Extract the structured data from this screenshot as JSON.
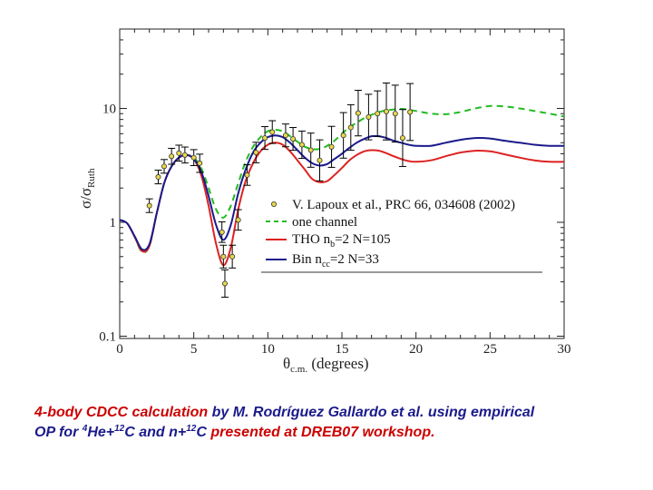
{
  "chart_data": {
    "type": "line",
    "xlabel": {
      "main": "θ",
      "sub": "c.m.",
      "rest": " (degrees)"
    },
    "ylabel": {
      "main": "σ/σ",
      "sub": "Ruth"
    },
    "xlim": [
      0,
      30
    ],
    "ylim": [
      0.1,
      60
    ],
    "yscale": "log",
    "xticks": [
      0,
      5,
      10,
      15,
      20,
      25,
      30
    ],
    "yticks": [
      {
        "value": 0.1,
        "label": "0.1"
      },
      {
        "value": 1,
        "label": "1"
      },
      {
        "value": 10,
        "label": "10"
      }
    ],
    "legend_position": "lower-right",
    "legend": [
      {
        "label": "V. Lapoux et al., PRC 66, 034608 (2002)",
        "style": "points"
      },
      {
        "label": "one channel",
        "style": "dashed"
      },
      {
        "label": "THO n",
        "sub": "b",
        "rest": "=2 N=105",
        "style": "solid-red"
      },
      {
        "label": "Bin n",
        "sub": "cc",
        "rest": "=2 N=33",
        "style": "solid-blue"
      }
    ],
    "series": [
      {
        "name": "one channel",
        "color": "#22bb22",
        "dash": true,
        "x": [
          0,
          0.5,
          1,
          1.5,
          2,
          2.5,
          3,
          3.5,
          4,
          4.5,
          5,
          5.5,
          6,
          6.5,
          7,
          7.5,
          8,
          8.5,
          9,
          9.5,
          10,
          10.5,
          11,
          11.5,
          12,
          12.5,
          13,
          13.5,
          14,
          14.5,
          15,
          15.5,
          16,
          16.5,
          17,
          17.5,
          18,
          19,
          20,
          21,
          22,
          23,
          24,
          25,
          26,
          27,
          28,
          29,
          30
        ],
        "y": [
          1.05,
          0.98,
          0.75,
          0.55,
          0.62,
          1.2,
          2.2,
          3.1,
          3.7,
          3.9,
          3.7,
          3.0,
          2.0,
          1.3,
          1.1,
          1.4,
          2.2,
          3.4,
          4.6,
          5.6,
          6.3,
          6.5,
          6.3,
          5.7,
          5.1,
          4.6,
          4.4,
          4.4,
          4.7,
          5.2,
          6.0,
          6.8,
          7.5,
          8.2,
          8.8,
          9.3,
          9.6,
          9.9,
          9.5,
          9.0,
          8.9,
          9.3,
          10.0,
          10.5,
          10.4,
          10.0,
          9.5,
          9.0,
          8.5
        ]
      },
      {
        "name": "THO nb=2 N=105",
        "color": "#dd2222",
        "dash": false,
        "x": [
          0,
          0.5,
          1,
          1.5,
          2,
          2.5,
          3,
          3.5,
          4,
          4.5,
          5,
          5.5,
          6,
          6.5,
          7,
          7.5,
          8,
          8.5,
          9,
          9.5,
          10,
          10.5,
          11,
          11.5,
          12,
          12.5,
          13,
          13.5,
          14,
          14.5,
          15,
          15.5,
          16,
          16.5,
          17,
          17.5,
          18,
          18.5,
          19,
          19.5,
          20,
          21,
          22,
          23,
          24,
          25,
          26,
          27,
          28,
          29,
          30
        ],
        "y": [
          1.05,
          0.98,
          0.75,
          0.56,
          0.62,
          1.2,
          2.2,
          3.1,
          3.7,
          3.9,
          3.6,
          2.6,
          1.4,
          0.65,
          0.42,
          0.6,
          1.3,
          2.3,
          3.3,
          4.2,
          4.8,
          5.0,
          4.8,
          4.2,
          3.5,
          2.9,
          2.4,
          2.25,
          2.3,
          2.6,
          3.0,
          3.5,
          3.9,
          4.2,
          4.3,
          4.25,
          4.05,
          3.8,
          3.6,
          3.45,
          3.4,
          3.5,
          3.8,
          4.1,
          4.25,
          4.2,
          3.95,
          3.7,
          3.5,
          3.4,
          3.4
        ]
      },
      {
        "name": "Bin ncc=2 N=33",
        "color": "#1a1a8c",
        "dash": false,
        "x": [
          0,
          0.5,
          1,
          1.5,
          2,
          2.5,
          3,
          3.5,
          4,
          4.5,
          5,
          5.5,
          6,
          6.5,
          7,
          7.5,
          8,
          8.5,
          9,
          9.5,
          10,
          10.5,
          11,
          11.5,
          12,
          12.5,
          13,
          13.5,
          14,
          14.5,
          15,
          15.5,
          16,
          16.5,
          17,
          17.5,
          18,
          18.5,
          19,
          19.5,
          20,
          21,
          22,
          23,
          24,
          25,
          26,
          27,
          28,
          29,
          30
        ],
        "y": [
          1.05,
          0.98,
          0.76,
          0.58,
          0.64,
          1.2,
          2.2,
          3.1,
          3.7,
          3.9,
          3.6,
          2.8,
          1.7,
          0.95,
          0.7,
          0.95,
          1.8,
          2.9,
          4.1,
          5.0,
          5.6,
          5.8,
          5.6,
          5.0,
          4.3,
          3.7,
          3.3,
          3.15,
          3.25,
          3.6,
          4.0,
          4.5,
          5.0,
          5.4,
          5.7,
          5.7,
          5.5,
          5.2,
          5.0,
          4.8,
          4.7,
          4.7,
          5.0,
          5.3,
          5.5,
          5.45,
          5.2,
          5.0,
          4.8,
          4.7,
          4.7
        ]
      }
    ],
    "data_points": [
      {
        "x": 2.0,
        "y": 1.4,
        "err": 0.06
      },
      {
        "x": 2.6,
        "y": 2.5,
        "err": 0.06
      },
      {
        "x": 3.0,
        "y": 3.1,
        "err": 0.06
      },
      {
        "x": 3.5,
        "y": 3.8,
        "err": 0.07
      },
      {
        "x": 4.0,
        "y": 4.05,
        "err": 0.07
      },
      {
        "x": 4.4,
        "y": 3.9,
        "err": 0.07
      },
      {
        "x": 5.0,
        "y": 3.7,
        "err": 0.07
      },
      {
        "x": 5.4,
        "y": 3.3,
        "err": 0.08
      },
      {
        "x": 6.9,
        "y": 0.82,
        "err": 0.09
      },
      {
        "x": 7.0,
        "y": 0.5,
        "err": 0.1
      },
      {
        "x": 7.1,
        "y": 0.29,
        "err": 0.12
      },
      {
        "x": 7.6,
        "y": 0.5,
        "err": 0.1
      },
      {
        "x": 8.0,
        "y": 1.05,
        "err": 0.09
      },
      {
        "x": 8.6,
        "y": 2.6,
        "err": 0.09
      },
      {
        "x": 9.2,
        "y": 4.1,
        "err": 0.09
      },
      {
        "x": 9.8,
        "y": 5.5,
        "err": 0.1
      },
      {
        "x": 10.3,
        "y": 6.2,
        "err": 0.1
      },
      {
        "x": 11.2,
        "y": 5.8,
        "err": 0.1
      },
      {
        "x": 11.7,
        "y": 5.4,
        "err": 0.1
      },
      {
        "x": 12.3,
        "y": 4.8,
        "err": 0.12
      },
      {
        "x": 12.9,
        "y": 4.3,
        "err": 0.15
      },
      {
        "x": 13.5,
        "y": 3.5,
        "err": 0.18
      },
      {
        "x": 14.3,
        "y": 4.6,
        "err": 0.18
      },
      {
        "x": 15.1,
        "y": 5.8,
        "err": 0.2
      },
      {
        "x": 15.6,
        "y": 6.8,
        "err": 0.2
      },
      {
        "x": 16.1,
        "y": 9.1,
        "err": 0.2
      },
      {
        "x": 16.8,
        "y": 8.4,
        "err": 0.2
      },
      {
        "x": 17.4,
        "y": 9.0,
        "err": 0.2
      },
      {
        "x": 18.0,
        "y": 9.4,
        "err": 0.25
      },
      {
        "x": 18.6,
        "y": 9.0,
        "err": 0.25
      },
      {
        "x": 19.1,
        "y": 5.5,
        "err": 0.25
      },
      {
        "x": 19.6,
        "y": 9.3,
        "err": 0.25
      }
    ]
  },
  "caption": {
    "part1": "4-body CDCC calculation",
    "part2": " by M. Rodríguez Gallardo et al. using empirical",
    "part3": "OP for ",
    "sup4": "4",
    "part4": "He+",
    "sup12a": "12",
    "part5": "C and n+",
    "sup12b": "12",
    "part6": "C ",
    "part7": "presented at DREB07 workshop."
  },
  "colors": {
    "data_marker": "#e8d84a",
    "error_bar": "#000000",
    "caption_red": "#cc0000",
    "caption_blue": "#1a1a8c"
  }
}
